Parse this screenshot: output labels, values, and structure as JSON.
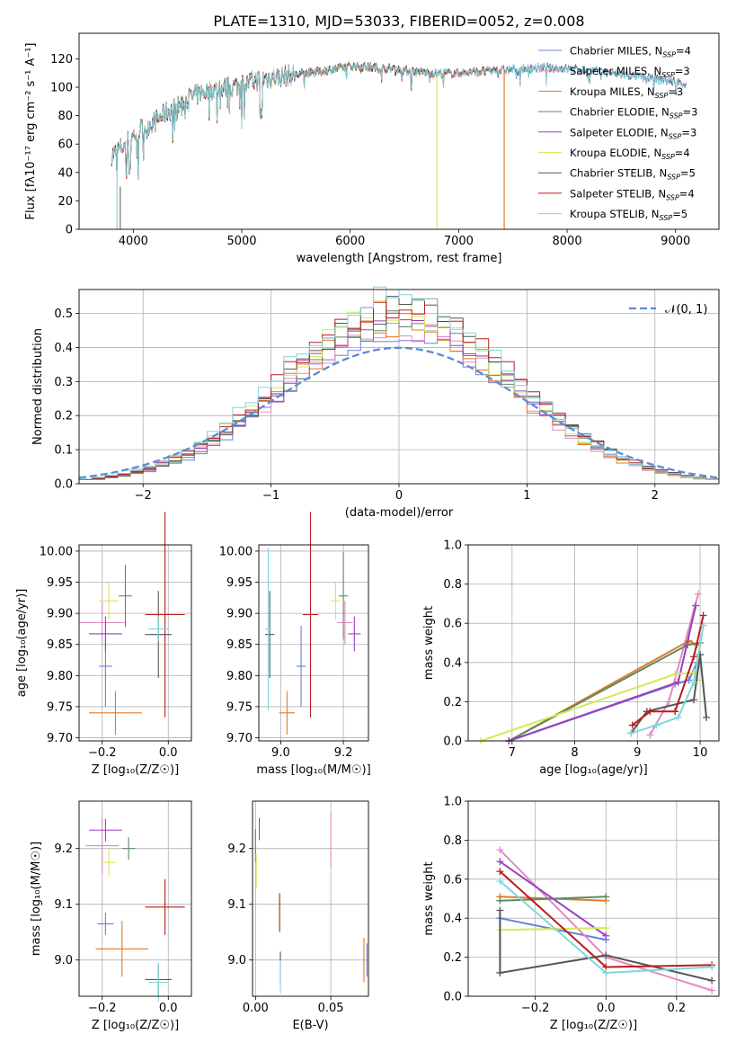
{
  "chart_data": [
    {
      "type": "line",
      "title": "PLATE=1310, MJD=53033, FIBERID=0052, z=0.008",
      "xlabel": "wavelength [Angstrom, rest frame]",
      "ylabel": "Flux [f$_\\lambda$10$^{-17}$ erg cm$^{-2}$ s$^{-1}$ A$^{-1}$]",
      "ylabel_display": "Flux [fλ10⁻¹⁷ erg cm⁻² s⁻¹ A⁻¹]",
      "xlim": [
        3500,
        9400
      ],
      "ylim": [
        0,
        138
      ],
      "xticks": [
        4000,
        5000,
        6000,
        7000,
        8000,
        9000
      ],
      "yticks": [
        0,
        20,
        40,
        60,
        80,
        100,
        120
      ],
      "legend_position": "top-right",
      "series": [
        {
          "name": "Chabrier MILES, N$_{SSP}$=4",
          "color": "#6a80d8",
          "x": [
            3800,
            9100
          ]
        },
        {
          "name": "Salpeter MILES, N$_{SSP}$=3",
          "color": "#e38ac4",
          "x": [
            3800,
            9100
          ]
        },
        {
          "name": "Kroupa MILES, N$_{SSP}$=3",
          "color": "#e07b27",
          "x": [
            3800,
            7420
          ]
        },
        {
          "name": "Chabrier ELODIE, N$_{SSP}$=3",
          "color": "#5c8a63",
          "x": [
            3800,
            6800
          ]
        },
        {
          "name": "Salpeter ELODIE, N$_{SSP}$=3",
          "color": "#9b3fc0",
          "x": [
            3800,
            6800
          ]
        },
        {
          "name": "Kroupa ELODIE, N$_{SSP}$=4",
          "color": "#d6e85a",
          "x": [
            3800,
            6800
          ]
        },
        {
          "name": "Chabrier STELIB, N$_{SSP}$=5",
          "color": "#555555",
          "x": [
            3800,
            9100
          ]
        },
        {
          "name": "Salpeter STELIB, N$_{SSP}$=4",
          "color": "#b81d1d",
          "x": [
            3800,
            7420
          ]
        },
        {
          "name": "Kroupa STELIB, N$_{SSP}$=5",
          "color": "#7fd6dc",
          "x": [
            3800,
            9100
          ]
        }
      ],
      "continuum": {
        "x": [
          3800,
          3900,
          4000,
          4100,
          4200,
          4300,
          4400,
          4500,
          4600,
          4700,
          4800,
          4900,
          5000,
          5200,
          5400,
          5600,
          5800,
          6000,
          6200,
          6400,
          6600,
          6800,
          7000,
          7200,
          7400,
          7600,
          7800,
          8000,
          8200,
          8400,
          8600,
          8800,
          9000,
          9100
        ],
        "y": [
          52,
          58,
          66,
          72,
          76,
          82,
          86,
          92,
          95,
          98,
          99,
          100,
          102,
          106,
          108,
          110,
          112,
          115,
          114,
          113,
          111,
          110,
          110,
          111,
          112,
          113,
          114,
          113,
          112,
          110,
          108,
          106,
          104,
          102
        ]
      },
      "dropouts": [
        {
          "series": "Kroupa ELODIE, N$_{SSP}$=4",
          "x": 6800
        },
        {
          "series": "Kroupa MILES, N$_{SSP}$=3",
          "x": 7420
        }
      ]
    },
    {
      "type": "line",
      "xlabel": "(data-model)/error",
      "ylabel": "Normed distribution",
      "xlim": [
        -2.5,
        2.5
      ],
      "ylim": [
        0,
        0.57
      ],
      "xticks": [
        -2,
        -1,
        0,
        1,
        2
      ],
      "yticks": [
        0.0,
        0.1,
        0.2,
        0.3,
        0.4,
        0.5
      ],
      "grid": true,
      "legend_position": "top-right",
      "legend": "$\\mathcal{N}(0, 1)$",
      "legend_display": "𝒩(0, 1)",
      "reference_color": "#5b8bd6",
      "hist_bin_width": 0.1,
      "hist_peak_range": [
        0.44,
        0.54
      ],
      "hist_colors": [
        "#6a80d8",
        "#e38ac4",
        "#e07b27",
        "#5c8a63",
        "#9b3fc0",
        "#d6e85a",
        "#555555",
        "#b81d1d",
        "#7fd6dc"
      ]
    },
    {
      "type": "scatter",
      "xlabel": "Z [log$_{10}$($Z/Z_\\odot$)]",
      "xlabel_display": "Z [log₁₀(Z/Z☉)]",
      "ylabel": "age  [log$_{10}$($age/yr$)]",
      "ylabel_display": "age  [log₁₀(age/yr)]",
      "xlim": [
        -0.27,
        0.07
      ],
      "ylim": [
        9.695,
        10.01
      ],
      "xticks": [
        -0.2,
        0.0
      ],
      "yticks": [
        9.7,
        9.75,
        9.8,
        9.85,
        9.9,
        9.95,
        10.0
      ],
      "grid": true,
      "points": [
        {
          "color": "#6a80d8",
          "x": -0.19,
          "xerr": 0.02,
          "y": 9.815,
          "yerr": 0.065
        },
        {
          "color": "#e38ac4",
          "x": -0.2,
          "xerr": 0.07,
          "y": 9.885,
          "yerr": 0.035
        },
        {
          "color": "#e07b27",
          "x": -0.16,
          "xerr": 0.08,
          "y": 9.74,
          "yerr": 0.035
        },
        {
          "color": "#5c8a63",
          "x": -0.13,
          "xerr": 0.02,
          "y": 9.928,
          "yerr": 0.05
        },
        {
          "color": "#9b3fc0",
          "x": -0.19,
          "xerr": 0.05,
          "y": 9.867,
          "yerr": 0.028
        },
        {
          "color": "#d6e85a",
          "x": -0.18,
          "xerr": 0.03,
          "y": 9.92,
          "yerr": 0.03
        },
        {
          "color": "#555555",
          "x": -0.03,
          "xerr": 0.04,
          "y": 9.866,
          "yerr": 0.07
        },
        {
          "color": "#b81d1d",
          "x": -0.01,
          "xerr": 0.06,
          "y": 9.898,
          "yerr": 0.165
        },
        {
          "color": "#7fd6dc",
          "x": -0.03,
          "xerr": 0.03,
          "y": 9.875,
          "yerr": 0.02
        }
      ]
    },
    {
      "type": "scatter",
      "xlabel": "mass [log$_{10}$($M/M_\\odot$)]",
      "xlabel_display": "mass [log₁₀(M/M☉)]",
      "xlim": [
        8.93,
        9.28
      ],
      "ylim": [
        9.695,
        10.01
      ],
      "xticks": [
        9.0,
        9.2
      ],
      "yticks": [
        9.7,
        9.75,
        9.8,
        9.85,
        9.9,
        9.95,
        10.0
      ],
      "grid": true,
      "points": [
        {
          "color": "#6a80d8",
          "x": 9.065,
          "xerr": 0.015,
          "y": 9.815,
          "yerr": 0.065
        },
        {
          "color": "#e38ac4",
          "x": 9.205,
          "xerr": 0.025,
          "y": 9.885,
          "yerr": 0.035
        },
        {
          "color": "#e07b27",
          "x": 9.02,
          "xerr": 0.025,
          "y": 9.74,
          "yerr": 0.035
        },
        {
          "color": "#5c8a63",
          "x": 9.2,
          "xerr": 0.015,
          "y": 9.928,
          "yerr": 0.07
        },
        {
          "color": "#9b3fc0",
          "x": 9.235,
          "xerr": 0.02,
          "y": 9.867,
          "yerr": 0.028
        },
        {
          "color": "#d6e85a",
          "x": 9.175,
          "xerr": 0.015,
          "y": 9.92,
          "yerr": 0.03
        },
        {
          "color": "#555555",
          "x": 8.965,
          "xerr": 0.015,
          "y": 9.866,
          "yerr": 0.07
        },
        {
          "color": "#b81d1d",
          "x": 9.095,
          "xerr": 0.025,
          "y": 9.898,
          "yerr": 0.165
        },
        {
          "color": "#7fd6dc",
          "x": 8.96,
          "xerr": 0.01,
          "y": 9.875,
          "yerr": 0.13
        }
      ]
    },
    {
      "type": "line",
      "xlabel": "age  [log$_{10}$($age/yr$)]",
      "xlabel_display": "age  [log₁₀(age/yr)]",
      "ylabel": "mass weight",
      "xlim": [
        6.3,
        10.3
      ],
      "ylim": [
        0,
        1.0
      ],
      "xticks": [
        7,
        8,
        9,
        10
      ],
      "yticks": [
        0.0,
        0.2,
        0.4,
        0.6,
        0.8,
        1.0
      ],
      "grid": true,
      "series": [
        {
          "color": "#6a80d8",
          "x": [
            6.95,
            9.6,
            9.82,
            9.95
          ],
          "y": [
            0.0,
            0.29,
            0.31,
            0.4
          ]
        },
        {
          "color": "#e38ac4",
          "x": [
            9.2,
            9.5,
            9.97
          ],
          "y": [
            0.03,
            0.2,
            0.75
          ]
        },
        {
          "color": "#e07b27",
          "x": [
            6.95,
            9.82,
            9.95
          ],
          "y": [
            0.0,
            0.51,
            0.49
          ]
        },
        {
          "color": "#5c8a63",
          "x": [
            6.95,
            9.8,
            10.0
          ],
          "y": [
            0.0,
            0.49,
            0.5
          ]
        },
        {
          "color": "#9b3fc0",
          "x": [
            6.95,
            9.65,
            9.93
          ],
          "y": [
            0.0,
            0.3,
            0.69
          ]
        },
        {
          "color": "#d6e85a",
          "x": [
            6.5,
            9.6,
            9.9,
            9.96
          ],
          "y": [
            0.0,
            0.34,
            0.35,
            0.31
          ]
        },
        {
          "color": "#555555",
          "x": [
            8.9,
            9.15,
            9.9,
            10.0,
            10.1
          ],
          "y": [
            0.04,
            0.15,
            0.21,
            0.44,
            0.12
          ]
        },
        {
          "color": "#b81d1d",
          "x": [
            8.92,
            9.2,
            9.6,
            9.9,
            10.05
          ],
          "y": [
            0.08,
            0.15,
            0.15,
            0.43,
            0.64
          ]
        },
        {
          "color": "#7fd6dc",
          "x": [
            8.9,
            9.3,
            9.65,
            9.9,
            10.05
          ],
          "y": [
            0.04,
            0.08,
            0.12,
            0.3,
            0.59
          ]
        }
      ]
    },
    {
      "type": "scatter",
      "xlabel": "Z [log$_{10}$($Z/Z_\\odot$)]",
      "xlabel_display": "Z [log₁₀(Z/Z☉)]",
      "ylabel": "mass [log$_{10}$($M/M_\\odot$)]",
      "ylabel_display": "mass [log₁₀(M/M☉)]",
      "xlim": [
        -0.27,
        0.07
      ],
      "ylim": [
        8.935,
        9.285
      ],
      "xticks": [
        -0.2,
        0.0
      ],
      "yticks": [
        9.0,
        9.1,
        9.2
      ],
      "grid": true,
      "points": [
        {
          "color": "#6a80d8",
          "x": -0.19,
          "xerr": 0.025,
          "y": 9.065,
          "yerr": 0.02
        },
        {
          "color": "#e38ac4",
          "x": -0.2,
          "xerr": 0.05,
          "y": 9.205,
          "yerr": 0.05
        },
        {
          "color": "#e07b27",
          "x": -0.14,
          "xerr": 0.08,
          "y": 9.02,
          "yerr": 0.05
        },
        {
          "color": "#5c8a63",
          "x": -0.12,
          "xerr": 0.02,
          "y": 9.2,
          "yerr": 0.02
        },
        {
          "color": "#9b3fc0",
          "x": -0.19,
          "xerr": 0.05,
          "y": 9.233,
          "yerr": 0.02
        },
        {
          "color": "#d6e85a",
          "x": -0.18,
          "xerr": 0.02,
          "y": 9.175,
          "yerr": 0.025
        },
        {
          "color": "#555555",
          "x": -0.03,
          "xerr": 0.04,
          "y": 8.965,
          "yerr": 0.03
        },
        {
          "color": "#b81d1d",
          "x": -0.01,
          "xerr": 0.06,
          "y": 9.095,
          "yerr": 0.05
        },
        {
          "color": "#7fd6dc",
          "x": -0.03,
          "xerr": 0.03,
          "y": 8.96,
          "yerr": 0.035
        }
      ]
    },
    {
      "type": "scatter",
      "xlabel": "E(B-V)",
      "xlim": [
        -0.002,
        0.075
      ],
      "ylim": [
        8.935,
        9.285
      ],
      "xticks": [
        0.0,
        0.05
      ],
      "yticks": [
        9.0,
        9.1,
        9.2
      ],
      "grid": true,
      "points": [
        {
          "color": "#6a80d8",
          "x": 0.074,
          "y": 9.0,
          "yerr": 0.03
        },
        {
          "color": "#e38ac4",
          "x": 0.05,
          "y": 9.215,
          "yerr": 0.05
        },
        {
          "color": "#e07b27",
          "x": 0.072,
          "y": 9.0,
          "yerr": 0.04
        },
        {
          "color": "#5c8a63",
          "x": 0.0,
          "y": 9.205,
          "yerr": 0.03
        },
        {
          "color": "#9b3fc0",
          "x": 0.0025,
          "y": 9.235,
          "yerr": 0.02
        },
        {
          "color": "#d6e85a",
          "x": 0.0005,
          "y": 9.16,
          "yerr": 0.03
        },
        {
          "color": "#555555",
          "x": 0.0165,
          "y": 8.985,
          "yerr": 0.03
        },
        {
          "color": "#b81d1d",
          "x": 0.016,
          "y": 9.085,
          "yerr": 0.035
        },
        {
          "color": "#7fd6dc",
          "x": 0.0165,
          "y": 8.97,
          "yerr": 0.03
        }
      ]
    },
    {
      "type": "line",
      "xlabel": "Z [log$_{10}$($Z/Z_\\odot$)]",
      "xlabel_display": "Z [log₁₀(Z/Z☉)]",
      "ylabel": "mass weight",
      "xlim": [
        -0.39,
        0.32
      ],
      "ylim": [
        0,
        1.0
      ],
      "xticks": [
        -0.2,
        0.0,
        0.2
      ],
      "yticks": [
        0.0,
        0.2,
        0.4,
        0.6,
        0.8,
        1.0
      ],
      "grid": true,
      "series": [
        {
          "color": "#6a80d8",
          "x": [
            -0.3,
            0.0
          ],
          "y": [
            0.4,
            0.29
          ]
        },
        {
          "color": "#e38ac4",
          "x": [
            -0.3,
            0.0,
            0.3
          ],
          "y": [
            0.75,
            0.2,
            0.03
          ]
        },
        {
          "color": "#e07b27",
          "x": [
            -0.3,
            0.0
          ],
          "y": [
            0.51,
            0.49
          ]
        },
        {
          "color": "#5c8a63",
          "x": [
            -0.3,
            0.0
          ],
          "y": [
            0.49,
            0.51
          ]
        },
        {
          "color": "#9b3fc0",
          "x": [
            -0.3,
            0.0
          ],
          "y": [
            0.69,
            0.31
          ]
        },
        {
          "color": "#d6e85a",
          "x": [
            -0.3,
            0.0
          ],
          "y": [
            0.34,
            0.35
          ]
        },
        {
          "color": "#555555",
          "x": [
            -0.3,
            -0.3,
            0.0,
            0.3
          ],
          "y": [
            0.44,
            0.12,
            0.21,
            0.08
          ]
        },
        {
          "color": "#b81d1d",
          "x": [
            -0.3,
            0.0,
            0.3
          ],
          "y": [
            0.64,
            0.15,
            0.16
          ]
        },
        {
          "color": "#7fd6dc",
          "x": [
            -0.3,
            0.0,
            0.3
          ],
          "y": [
            0.59,
            0.12,
            0.15
          ]
        }
      ]
    }
  ]
}
